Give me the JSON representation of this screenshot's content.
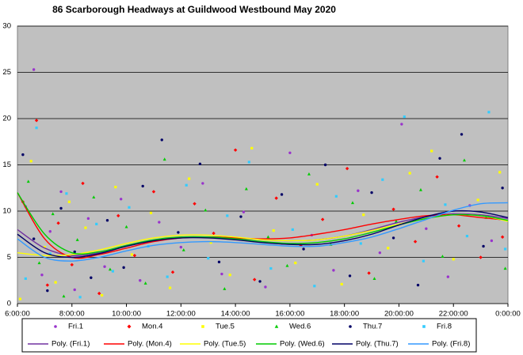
{
  "chart_data": {
    "type": "scatter",
    "title": "86 Scarborough Headways at Guildwood Westbound May 2020",
    "xlim": [
      6,
      24
    ],
    "ylim": [
      0,
      30
    ],
    "xticks": [
      {
        "value": 6,
        "label": "6:00:00"
      },
      {
        "value": 8,
        "label": "8:00:00"
      },
      {
        "value": 10,
        "label": "10:00:00"
      },
      {
        "value": 12,
        "label": "12:00:00"
      },
      {
        "value": 14,
        "label": "14:00:00"
      },
      {
        "value": 16,
        "label": "16:00:00"
      },
      {
        "value": 18,
        "label": "18:00:00"
      },
      {
        "value": 20,
        "label": "20:00:00"
      },
      {
        "value": 22,
        "label": "22:00:00"
      },
      {
        "value": 24,
        "label": "0:00:00"
      }
    ],
    "yticks": [
      0,
      5,
      10,
      15,
      20,
      25,
      30
    ],
    "grid": true,
    "series": [
      {
        "name": "Fri.1",
        "type": "scatter",
        "marker": "circle",
        "color": "#9933cc",
        "x": [
          6.3,
          6.6,
          6.9,
          7.2,
          7.6,
          8.1,
          8.6,
          9.2,
          9.8,
          10.5,
          11.2,
          12.0,
          12.8,
          13.5,
          14.3,
          15.1,
          16.0,
          16.8,
          17.6,
          18.5,
          19.3,
          20.1,
          21.0,
          21.8,
          22.6,
          23.4
        ],
        "values": [
          10.5,
          25.3,
          3.1,
          7.8,
          12.1,
          1.5,
          9.2,
          4.0,
          11.3,
          2.5,
          8.8,
          6.1,
          13.0,
          3.2,
          9.9,
          1.8,
          16.3,
          7.4,
          3.6,
          12.2,
          5.5,
          19.4,
          8.1,
          2.9,
          10.6,
          6.8
        ]
      },
      {
        "name": "Mon.4",
        "type": "scatter",
        "marker": "diamond",
        "color": "#ff0000",
        "x": [
          6.2,
          6.7,
          7.1,
          7.5,
          8.0,
          8.4,
          9.0,
          9.7,
          10.3,
          11.0,
          11.7,
          12.5,
          13.2,
          14.0,
          14.7,
          15.5,
          16.4,
          17.2,
          18.1,
          18.9,
          19.8,
          20.6,
          21.4,
          22.2,
          23.0,
          23.8
        ],
        "values": [
          11.0,
          19.8,
          2.0,
          8.7,
          4.2,
          13.0,
          1.1,
          9.5,
          5.2,
          12.1,
          3.4,
          10.8,
          7.6,
          16.6,
          2.6,
          11.4,
          6.3,
          9.1,
          14.6,
          3.3,
          10.2,
          6.7,
          13.7,
          8.4,
          5.0,
          7.2
        ]
      },
      {
        "name": "Tue.5",
        "type": "scatter",
        "marker": "square",
        "color": "#ffff00",
        "x": [
          6.1,
          6.5,
          7.0,
          7.4,
          7.9,
          8.5,
          9.1,
          9.6,
          10.2,
          10.9,
          11.6,
          12.3,
          13.1,
          13.8,
          14.6,
          15.4,
          16.2,
          17.0,
          17.9,
          18.7,
          19.6,
          20.4,
          21.2,
          22.0,
          22.9,
          23.7
        ],
        "values": [
          0.5,
          15.4,
          6.1,
          2.3,
          11.0,
          8.2,
          0.9,
          12.6,
          5.3,
          9.8,
          1.7,
          13.5,
          6.6,
          3.1,
          16.8,
          7.9,
          4.4,
          12.9,
          2.1,
          9.6,
          6.0,
          14.1,
          16.5,
          4.8,
          11.2,
          14.2
        ]
      },
      {
        "name": "Wed.6",
        "type": "scatter",
        "marker": "triangle",
        "color": "#00cc00",
        "x": [
          6.4,
          6.8,
          7.3,
          7.7,
          8.2,
          8.8,
          9.4,
          10.0,
          10.7,
          11.4,
          12.1,
          12.9,
          13.6,
          14.4,
          15.2,
          15.9,
          16.7,
          17.5,
          18.3,
          19.1,
          19.9,
          20.8,
          21.6,
          22.4,
          23.2,
          23.9
        ],
        "values": [
          13.2,
          4.4,
          9.7,
          0.8,
          6.9,
          11.5,
          3.7,
          8.3,
          2.2,
          15.6,
          5.8,
          10.1,
          1.6,
          12.4,
          7.2,
          4.1,
          14.0,
          6.4,
          10.9,
          2.7,
          8.9,
          12.3,
          5.1,
          15.5,
          9.3,
          3.8
        ]
      },
      {
        "name": "Thu.7",
        "type": "scatter",
        "marker": "circle",
        "color": "#000066",
        "x": [
          6.2,
          6.6,
          7.1,
          7.6,
          8.1,
          8.7,
          9.3,
          9.9,
          10.6,
          11.3,
          11.9,
          12.7,
          13.4,
          14.2,
          14.9,
          15.7,
          16.5,
          17.3,
          18.2,
          19.0,
          19.8,
          20.7,
          21.5,
          22.3,
          23.1,
          23.8
        ],
        "values": [
          16.1,
          7.0,
          1.4,
          10.3,
          5.6,
          2.8,
          9.0,
          3.9,
          12.7,
          17.7,
          7.7,
          15.1,
          4.5,
          9.4,
          2.4,
          11.8,
          5.9,
          15.0,
          3.0,
          12.0,
          7.1,
          2.0,
          15.7,
          18.3,
          6.2,
          12.5
        ]
      },
      {
        "name": "Fri.8",
        "type": "scatter",
        "marker": "square",
        "color": "#33ccff",
        "x": [
          6.3,
          6.7,
          7.2,
          7.8,
          8.3,
          8.9,
          9.5,
          10.1,
          10.8,
          11.5,
          12.2,
          13.0,
          13.7,
          14.5,
          15.3,
          16.1,
          16.9,
          17.7,
          18.6,
          19.4,
          20.2,
          20.9,
          21.7,
          22.5,
          23.3,
          23.9
        ],
        "values": [
          2.7,
          19.0,
          5.4,
          11.9,
          0.7,
          8.6,
          3.5,
          10.4,
          6.2,
          2.9,
          12.8,
          4.9,
          9.5,
          15.3,
          3.8,
          8.0,
          1.9,
          11.6,
          6.5,
          13.4,
          20.2,
          4.6,
          10.7,
          7.3,
          20.7,
          5.9
        ]
      },
      {
        "name": "Poly. (Fri.1)",
        "type": "line",
        "color": "#7030a0",
        "x": [
          6,
          7,
          8,
          9,
          10,
          11,
          12,
          13,
          14,
          15,
          16,
          17,
          18,
          19,
          20,
          21,
          22,
          23,
          24
        ],
        "values": [
          8,
          6,
          5.2,
          5.5,
          6.2,
          6.8,
          7.1,
          7.2,
          7.1,
          6.9,
          6.8,
          6.9,
          7.3,
          8,
          8.8,
          9.4,
          9.7,
          9.6,
          9.2
        ]
      },
      {
        "name": "Poly. (Mon.4)",
        "type": "line",
        "color": "#ff0000",
        "x": [
          6,
          7,
          8,
          9,
          10,
          11,
          12,
          13,
          14,
          15,
          16,
          17,
          18,
          19,
          20,
          21,
          22,
          23,
          24
        ],
        "values": [
          12,
          7,
          5,
          5.3,
          6,
          6.7,
          7.1,
          7.2,
          7.1,
          7,
          7.1,
          7.5,
          8,
          8.6,
          9.1,
          9.5,
          9.6,
          9.3,
          9
        ]
      },
      {
        "name": "Poly. (Tue.5)",
        "type": "line",
        "color": "#ffff00",
        "x": [
          6,
          7,
          8,
          9,
          10,
          11,
          12,
          13,
          14,
          15,
          16,
          17,
          18,
          19,
          20,
          21,
          22,
          23,
          24
        ],
        "values": [
          5.5,
          5.2,
          5.3,
          5.8,
          6.5,
          7.1,
          7.4,
          7.4,
          7.2,
          6.9,
          6.8,
          6.9,
          7.3,
          7.9,
          8.6,
          9.2,
          9.6,
          9.5,
          8.9
        ]
      },
      {
        "name": "Poly. (Wed.6)",
        "type": "line",
        "color": "#00cc00",
        "x": [
          6,
          7,
          8,
          9,
          10,
          11,
          12,
          13,
          14,
          15,
          16,
          17,
          18,
          19,
          20,
          21,
          22,
          23,
          24
        ],
        "values": [
          12,
          7.5,
          5.5,
          5.6,
          6.3,
          6.9,
          7.2,
          7.2,
          7,
          6.7,
          6.5,
          6.6,
          7,
          7.7,
          8.5,
          9.2,
          9.6,
          9.5,
          9
        ]
      },
      {
        "name": "Poly. (Thu.7)",
        "type": "line",
        "color": "#000066",
        "x": [
          6,
          7,
          8,
          9,
          10,
          11,
          12,
          13,
          14,
          15,
          16,
          17,
          18,
          19,
          20,
          21,
          22,
          23,
          24
        ],
        "values": [
          7.5,
          5.5,
          5,
          5.4,
          6.2,
          6.8,
          7.1,
          7.1,
          6.9,
          6.6,
          6.4,
          6.4,
          6.8,
          7.5,
          8.5,
          9.4,
          10,
          9.9,
          9.3
        ]
      },
      {
        "name": "Poly. (Fri.8)",
        "type": "line",
        "color": "#3399ff",
        "x": [
          6,
          7,
          8,
          9,
          10,
          11,
          12,
          13,
          14,
          15,
          16,
          17,
          18,
          19,
          20,
          21,
          22,
          23,
          24
        ],
        "values": [
          7,
          5,
          4.6,
          5,
          5.7,
          6.3,
          6.6,
          6.7,
          6.6,
          6.4,
          6.2,
          6.2,
          6.6,
          7.2,
          8.1,
          9.1,
          10.1,
          10.8,
          10.9
        ]
      }
    ]
  }
}
